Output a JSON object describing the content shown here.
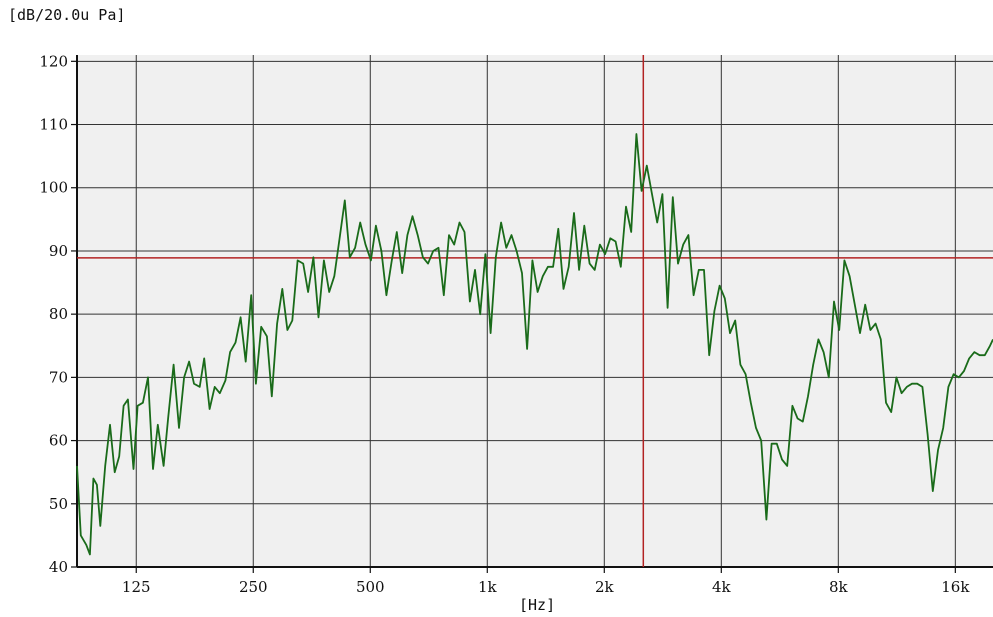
{
  "chart_data": {
    "type": "line",
    "title": "",
    "ylabel": "[dB/20.0u Pa]",
    "xlabel": "[Hz]",
    "x_scale": "log2",
    "xlim": [
      88,
      20000
    ],
    "ylim": [
      40,
      121
    ],
    "yticks": [
      40,
      50,
      60,
      70,
      80,
      90,
      100,
      110,
      120
    ],
    "xticks": [
      {
        "label": "125",
        "value": 125
      },
      {
        "label": "250",
        "value": 250
      },
      {
        "label": "500",
        "value": 500
      },
      {
        "label": "1k",
        "value": 1000
      },
      {
        "label": "2k",
        "value": 2000
      },
      {
        "label": "4k",
        "value": 4000
      },
      {
        "label": "8k",
        "value": 8000
      },
      {
        "label": "16k",
        "value": 16000
      }
    ],
    "grid": true,
    "cursor": {
      "x": 2520,
      "y": 88.9,
      "color": "#b22222"
    },
    "series": [
      {
        "name": "",
        "color": "#1a6b1a",
        "x": [
          88,
          90,
          93,
          95,
          97,
          99,
          101,
          104,
          107,
          110,
          113,
          116,
          119,
          123,
          126,
          130,
          134,
          138,
          142,
          147,
          151,
          156,
          161,
          166,
          171,
          176,
          182,
          187,
          193,
          199,
          205,
          212,
          218,
          225,
          232,
          239,
          247,
          254,
          262,
          271,
          279,
          288,
          297,
          306,
          315,
          325,
          336,
          346,
          357,
          368,
          380,
          392,
          404,
          417,
          430,
          443,
          457,
          471,
          486,
          502,
          517,
          534,
          550,
          568,
          585,
          604,
          623,
          642,
          662,
          683,
          704,
          726,
          749,
          773,
          797,
          822,
          848,
          874,
          902,
          930,
          959,
          989,
          1020,
          1052,
          1085,
          1119,
          1154,
          1190,
          1228,
          1266,
          1306,
          1347,
          1389,
          1432,
          1477,
          1523,
          1571,
          1620,
          1671,
          1723,
          1777,
          1833,
          1890,
          1949,
          2010,
          2073,
          2138,
          2205,
          2274,
          2345,
          2419,
          2494,
          2572,
          2653,
          2736,
          2821,
          2910,
          3001,
          3094,
          3191,
          3291,
          3394,
          3500,
          3610,
          3723,
          3839,
          3959,
          4083,
          4211,
          4343,
          4479,
          4619,
          4763,
          4912,
          5066,
          5224,
          5388,
          5556,
          5730,
          5909,
          6094,
          6285,
          6481,
          6684,
          6893,
          7109,
          7331,
          7560,
          7797,
          8041,
          8292,
          8552,
          8819,
          9095,
          9380,
          9673,
          9976,
          10288,
          10610,
          10942,
          11284,
          11637,
          12001,
          12377,
          12764,
          13163,
          13575,
          13999,
          14437,
          14889,
          15354,
          15835,
          16330,
          16841,
          17368,
          17911,
          18471,
          19049,
          19645,
          20000
        ],
        "y": [
          56,
          45,
          43.5,
          42,
          54,
          53,
          46.5,
          56,
          62.5,
          55,
          57.5,
          65.5,
          66.5,
          55.5,
          65.5,
          66,
          70,
          55.5,
          62.5,
          56,
          63.5,
          72,
          62,
          70,
          72.5,
          69,
          68.5,
          73,
          65,
          68.5,
          67.5,
          69.5,
          74,
          75.5,
          79.5,
          72.5,
          83,
          69,
          78,
          76.5,
          67,
          78.5,
          84,
          77.5,
          79,
          88.5,
          88,
          83.5,
          89,
          79.5,
          88.5,
          83.5,
          86,
          92,
          98,
          89,
          90.5,
          94.5,
          91,
          88.5,
          94,
          90,
          83,
          88.5,
          93,
          86.5,
          92.5,
          95.5,
          92.5,
          89,
          88,
          90,
          90.5,
          83,
          92.5,
          91,
          94.5,
          93,
          82,
          87,
          80,
          89.5,
          77,
          89,
          94.5,
          90.5,
          92.5,
          90,
          86.5,
          74.5,
          88.5,
          83.5,
          86,
          87.5,
          87.5,
          93.5,
          84,
          87.5,
          96,
          87,
          94,
          88,
          87,
          91,
          89.5,
          92,
          91.5,
          87.5,
          97,
          93,
          108.5,
          99.5,
          103.5,
          99,
          94.5,
          99,
          81,
          98.5,
          88,
          91,
          92.5,
          83,
          87,
          87,
          73.5,
          80.5,
          84.5,
          82.5,
          77,
          79,
          72,
          70.5,
          66,
          62,
          60,
          47.5,
          59.5,
          59.5,
          57,
          56,
          65.5,
          63.5,
          63,
          67,
          72,
          76,
          74,
          70,
          82,
          77.5,
          88.5,
          86,
          81.5,
          77,
          81.5,
          77.5,
          78.5,
          76,
          66,
          64.5,
          70,
          67.5,
          68.5,
          69,
          69,
          68.5,
          61,
          52,
          58.5,
          62,
          68.5,
          70.5,
          70,
          71,
          73,
          74,
          73.5,
          73.5,
          75,
          76
        ]
      }
    ]
  }
}
